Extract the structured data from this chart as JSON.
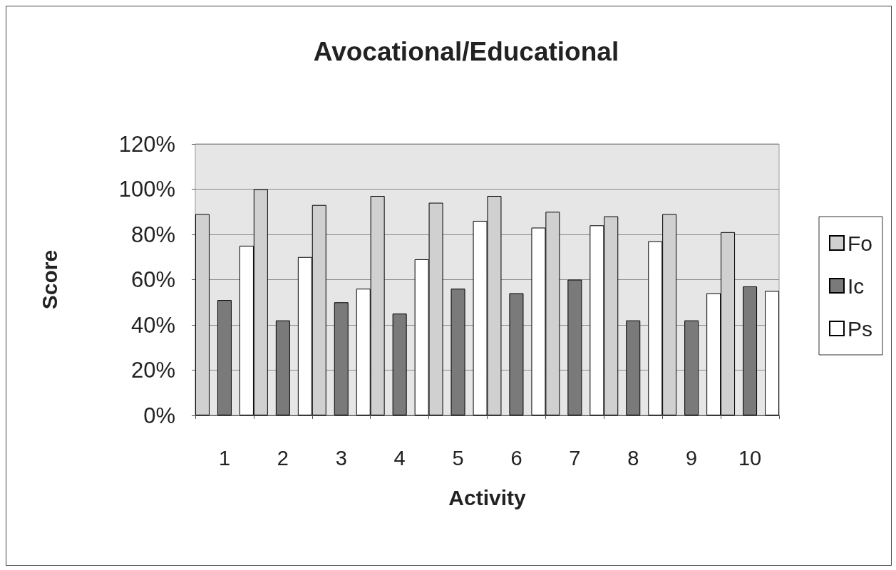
{
  "chart_data": {
    "type": "bar",
    "title": "Avocational/Educational",
    "xlabel": "Activity",
    "ylabel": "Score",
    "categories": [
      "1",
      "2",
      "3",
      "4",
      "5",
      "6",
      "7",
      "8",
      "9",
      "10"
    ],
    "series": [
      {
        "name": "Fo",
        "color": "#d0d0d0",
        "values": [
          89,
          100,
          93,
          97,
          94,
          97,
          90,
          88,
          89,
          81
        ]
      },
      {
        "name": "Ic",
        "color": "#7a7a7a",
        "values": [
          51,
          42,
          50,
          45,
          56,
          54,
          60,
          42,
          42,
          57
        ]
      },
      {
        "name": "Ps",
        "color": "#ffffff",
        "values": [
          75,
          70,
          56,
          69,
          86,
          83,
          84,
          77,
          54,
          55
        ]
      }
    ],
    "ylim": [
      0,
      120
    ],
    "yticks": [
      {
        "value": 0,
        "label": "0%"
      },
      {
        "value": 20,
        "label": "20%"
      },
      {
        "value": 40,
        "label": "40%"
      },
      {
        "value": 60,
        "label": "60%"
      },
      {
        "value": 80,
        "label": "80%"
      },
      {
        "value": 100,
        "label": "100%"
      },
      {
        "value": 120,
        "label": "120%"
      }
    ],
    "grid": "y",
    "legend": "right"
  }
}
